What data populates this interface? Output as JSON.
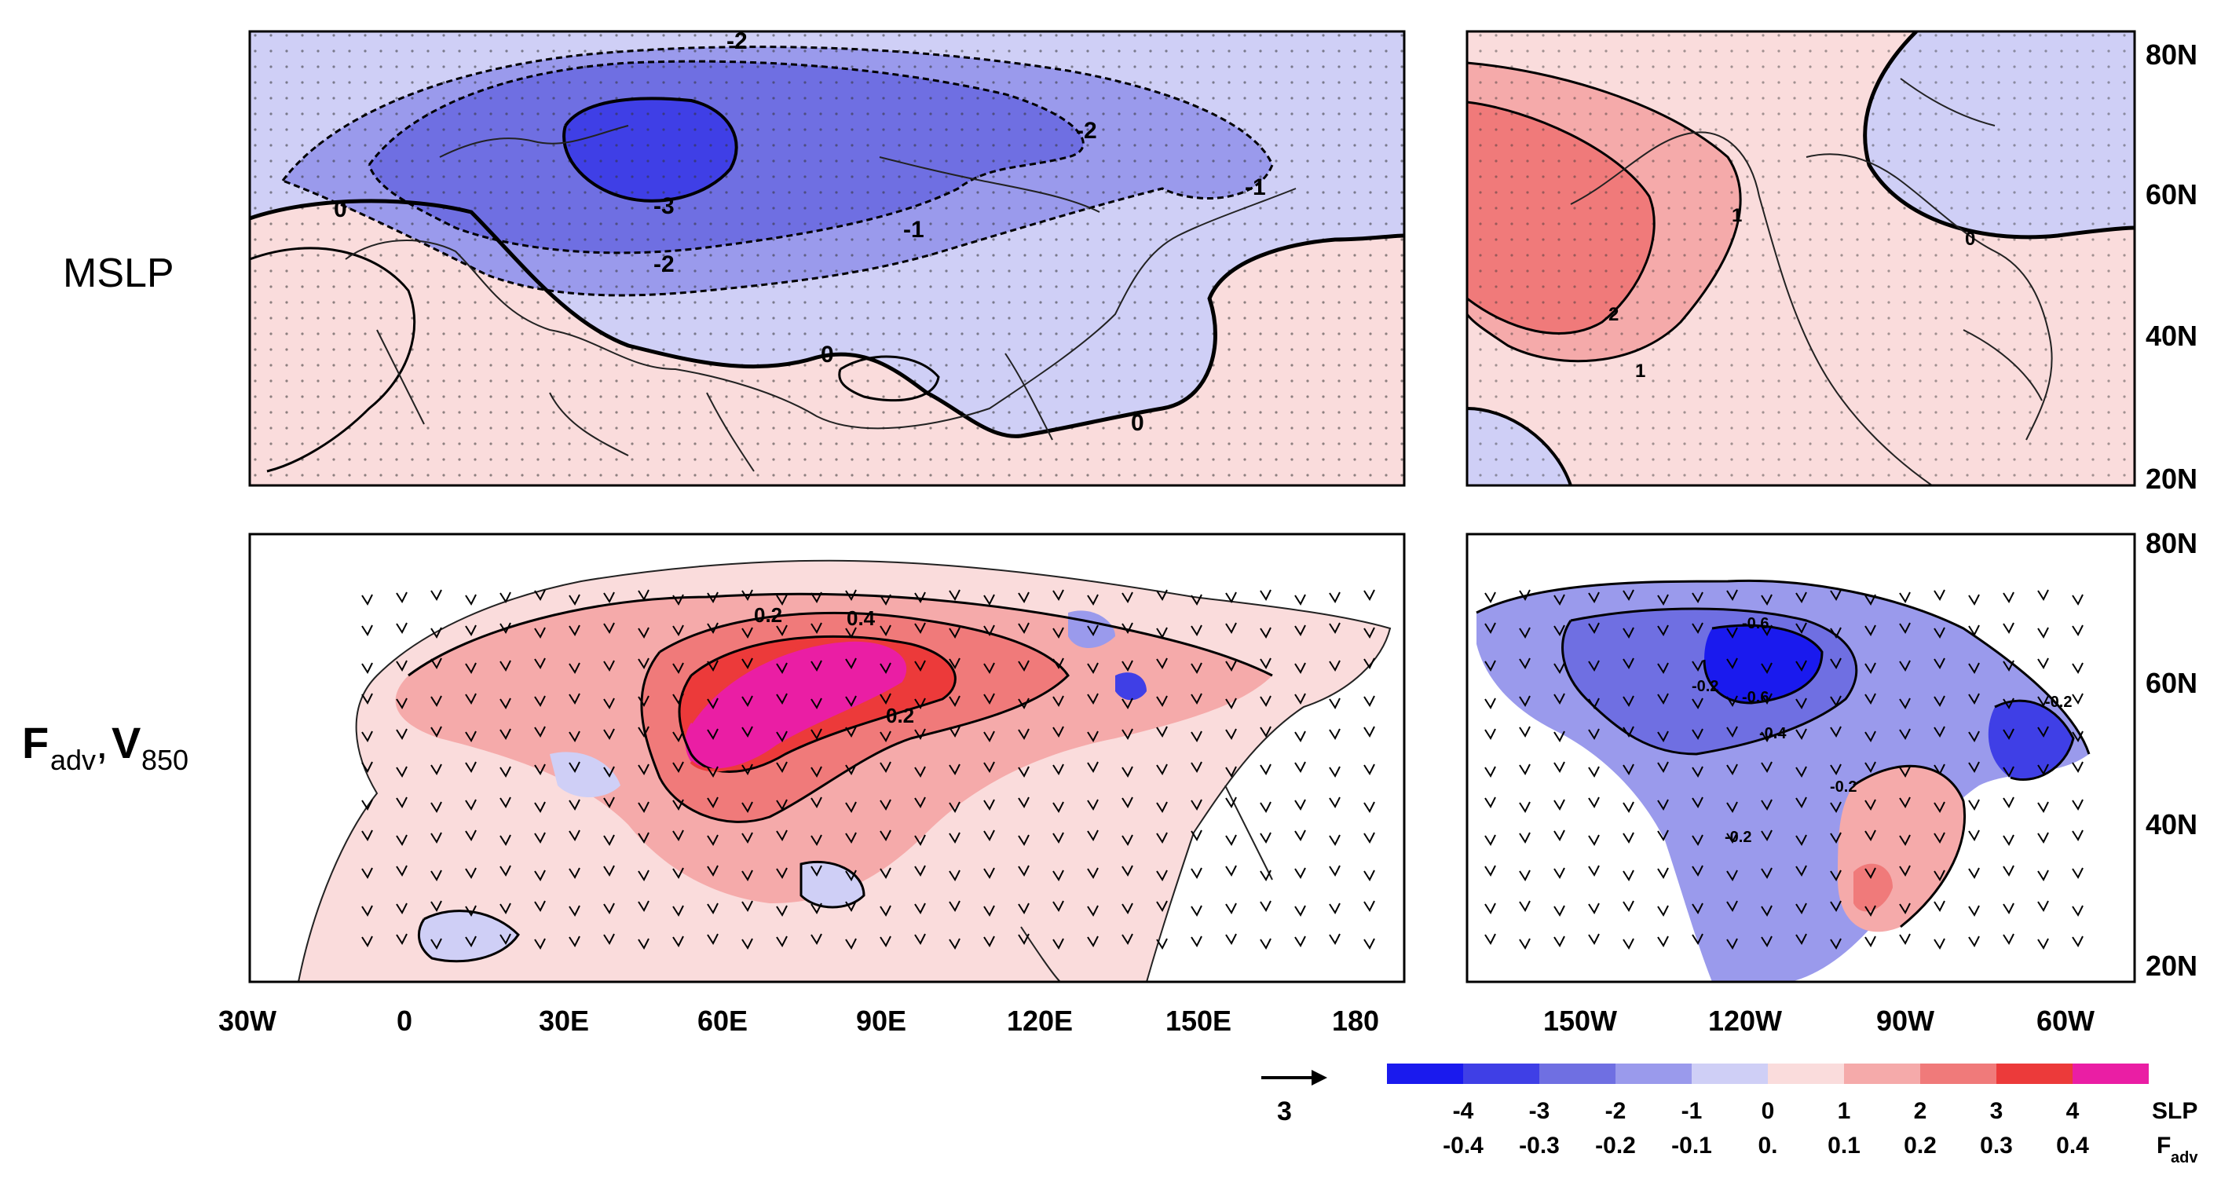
{
  "row_labels": {
    "top": "MSLP",
    "bottom_F": "F",
    "bottom_F_sub": "adv",
    "bottom_comma": ",",
    "bottom_V": "V",
    "bottom_V_sub": "850"
  },
  "lat_labels": [
    "80N",
    "60N",
    "40N",
    "20N"
  ],
  "lon_labels_eurasia": [
    "30W",
    "0",
    "30E",
    "60E",
    "90E",
    "120E",
    "150E",
    "180"
  ],
  "lon_labels_america": [
    "150W",
    "120W",
    "90W",
    "60W"
  ],
  "contour_labels": {
    "mslp_eurasia": [
      "-2",
      "-3",
      "-2",
      "-2",
      "-1",
      "-1",
      "0",
      "0",
      "0"
    ],
    "mslp_america": [
      "1",
      "2",
      "1",
      "0"
    ],
    "fadv_eurasia": [
      "0.4",
      "0.2",
      "0.2"
    ],
    "fadv_america": [
      "-0.6",
      "-0.6",
      "-0.2",
      "-0.4",
      "-0.2",
      "-0.2",
      "-0.2"
    ]
  },
  "vector_scale": {
    "label": "3"
  },
  "colorbar": {
    "colors": [
      "#1a1aee",
      "#3f3fe6",
      "#6f6fe2",
      "#9a9aec",
      "#cfcff6",
      "#fadcdc",
      "#f5aaaa",
      "#f07a7a",
      "#ec3a3a",
      "#ea1ea4"
    ],
    "slp_labels": [
      "-4",
      "-3",
      "-2",
      "-1",
      "0",
      "1",
      "2",
      "3",
      "4"
    ],
    "fadv_labels": [
      "-0.4",
      "-0.3",
      "-0.2",
      "-0.1",
      "0.",
      "0.1",
      "0.2",
      "0.3",
      "0.4"
    ],
    "slp_title": "SLP",
    "fadv_title": "F",
    "fadv_title_sub": "adv"
  }
}
